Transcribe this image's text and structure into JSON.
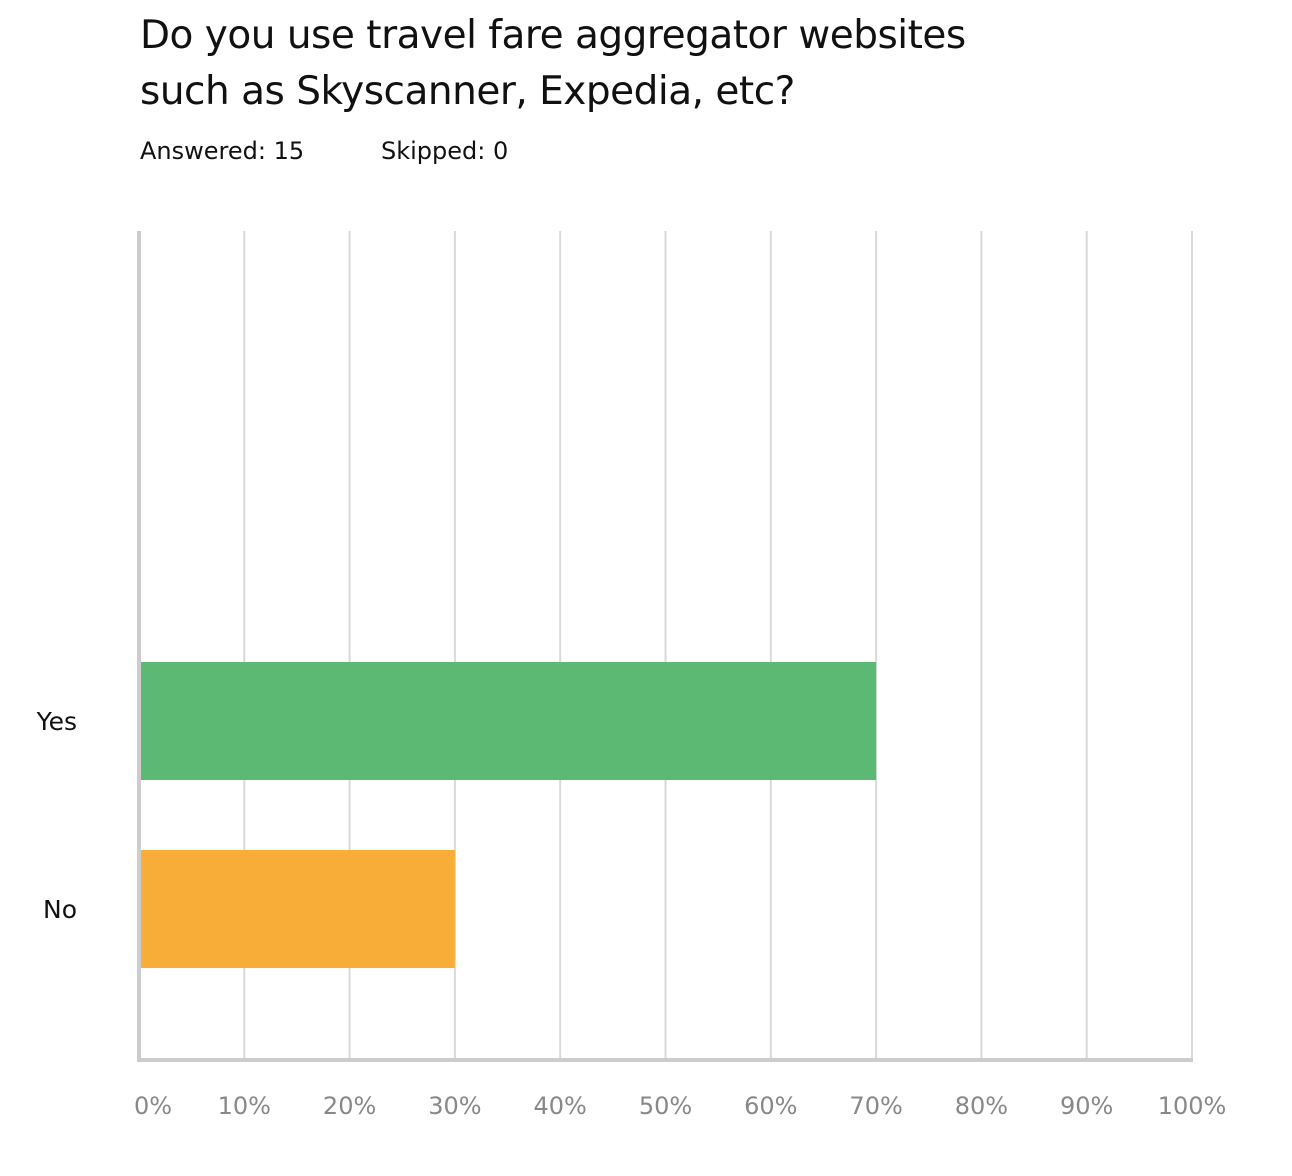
{
  "header": {
    "title_line1": "Do you use travel fare aggregator websites",
    "title_line2": "such as Skyscanner, Expedia, etc?",
    "answered": "Answered: 15",
    "skipped": "Skipped: 0"
  },
  "chart_data": {
    "type": "bar",
    "orientation": "horizontal",
    "title": "Do you use travel fare aggregator websites such as Skyscanner, Expedia, etc?",
    "categories": [
      "Yes",
      "No"
    ],
    "values": [
      70,
      30
    ],
    "colors": [
      "#5bb974",
      "#f8ad39"
    ],
    "xlim": [
      0,
      100
    ],
    "x_ticks": [
      "0%",
      "10%",
      "20%",
      "30%",
      "40%",
      "50%",
      "60%",
      "70%",
      "80%",
      "90%",
      "100%"
    ],
    "xlabel": "",
    "ylabel": "",
    "grid": true,
    "grid_color": "#d9d9d9",
    "axis_color": "#cccccc"
  }
}
